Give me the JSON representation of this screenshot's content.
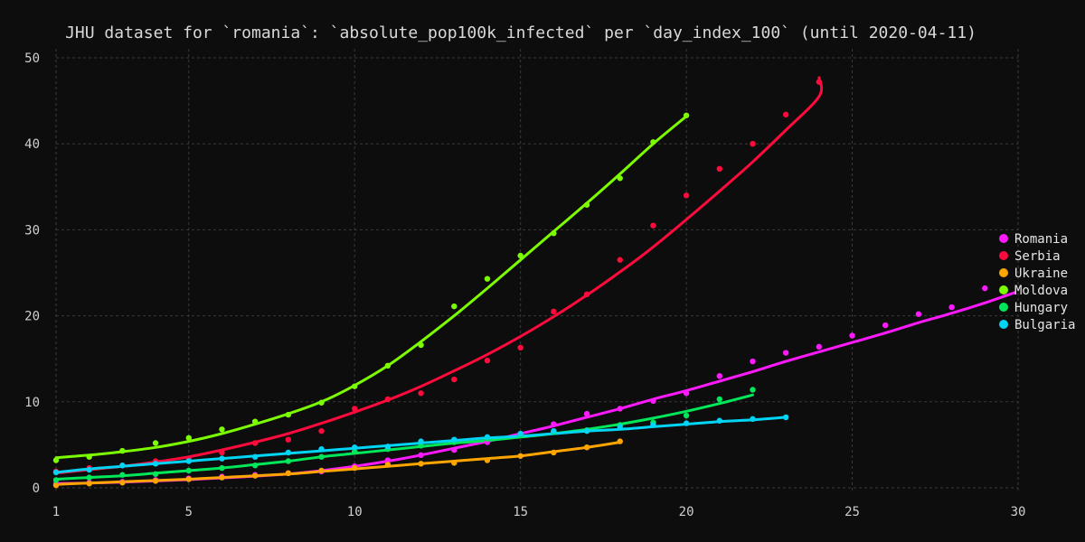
{
  "chart_data": {
    "type": "scatter",
    "title": "JHU dataset for `romania`: `absolute_pop100k_infected` per `day_index_100` (until 2020-04-11)",
    "xlabel": "",
    "ylabel": "",
    "xlim": [
      1,
      30
    ],
    "ylim": [
      0,
      50
    ],
    "xticks": [
      1,
      5,
      10,
      15,
      20,
      25,
      30
    ],
    "yticks": [
      0,
      10,
      20,
      30,
      40,
      50
    ],
    "grid": true,
    "legend_position": "right",
    "series": [
      {
        "name": "Romania",
        "color": "#ff19ff",
        "x": [
          1,
          2,
          3,
          4,
          5,
          6,
          7,
          8,
          9,
          10,
          11,
          12,
          13,
          14,
          15,
          16,
          17,
          18,
          19,
          20,
          21,
          22,
          23,
          24,
          25,
          26,
          27,
          28,
          29
        ],
        "y": [
          0.5,
          0.6,
          0.7,
          0.9,
          1.1,
          1.3,
          1.5,
          1.7,
          1.9,
          2.5,
          3.2,
          3.8,
          4.4,
          5.3,
          6.2,
          7.4,
          8.6,
          9.2,
          10.1,
          11.0,
          13.0,
          14.7,
          15.7,
          16.4,
          17.7,
          18.9,
          20.2,
          21.0,
          23.2
        ],
        "fit": [
          0.5,
          0.55,
          0.65,
          0.8,
          0.95,
          1.15,
          1.35,
          1.6,
          2.0,
          2.5,
          3.1,
          3.8,
          4.6,
          5.4,
          6.3,
          7.2,
          8.2,
          9.2,
          10.3,
          11.3,
          12.4,
          13.5,
          14.7,
          15.8,
          16.9,
          18.0,
          19.2,
          20.3,
          21.5,
          22.7
        ],
        "fit_x": [
          1,
          2,
          3,
          4,
          5,
          6,
          7,
          8,
          9,
          10,
          11,
          12,
          13,
          14,
          15,
          16,
          17,
          18,
          19,
          20,
          21,
          22,
          23,
          24,
          25,
          26,
          27,
          28,
          29,
          29.9
        ]
      },
      {
        "name": "Serbia",
        "color": "#ff0a3c",
        "x": [
          1,
          2,
          3,
          4,
          5,
          6,
          7,
          8,
          9,
          10,
          11,
          12,
          13,
          14,
          15,
          16,
          17,
          18,
          19,
          20,
          21,
          22,
          23,
          24
        ],
        "y": [
          1.9,
          2.3,
          2.6,
          3.1,
          3.4,
          4.1,
          5.2,
          5.6,
          6.6,
          9.2,
          10.3,
          11.0,
          12.6,
          14.8,
          16.3,
          20.5,
          22.5,
          26.5,
          30.5,
          34.0,
          37.1,
          40.0,
          43.4,
          47.2
        ],
        "fit": [
          1.7,
          2.1,
          2.5,
          3.0,
          3.6,
          4.4,
          5.3,
          6.3,
          7.5,
          8.8,
          10.2,
          11.8,
          13.6,
          15.5,
          17.6,
          19.9,
          22.4,
          25.1,
          28.0,
          31.2,
          34.5,
          37.9,
          41.6,
          45.5,
          47.7
        ],
        "fit_x": [
          1,
          2,
          3,
          4,
          5,
          6,
          7,
          8,
          9,
          10,
          11,
          12,
          13,
          14,
          15,
          16,
          17,
          18,
          19,
          20,
          21,
          22,
          23,
          24,
          24.0
        ]
      },
      {
        "name": "Ukraine",
        "color": "#ffa500",
        "x": [
          1,
          2,
          3,
          4,
          5,
          6,
          7,
          8,
          9,
          10,
          11,
          12,
          13,
          14,
          15,
          16,
          17,
          18
        ],
        "y": [
          0.3,
          0.5,
          0.6,
          0.8,
          1.0,
          1.2,
          1.4,
          1.7,
          2.0,
          2.3,
          2.7,
          2.8,
          2.9,
          3.2,
          3.7,
          4.1,
          4.7,
          5.4
        ],
        "fit": [
          0.4,
          0.55,
          0.7,
          0.85,
          1.0,
          1.2,
          1.4,
          1.6,
          1.9,
          2.2,
          2.5,
          2.8,
          3.1,
          3.4,
          3.7,
          4.2,
          4.7,
          5.3
        ],
        "fit_x": [
          1,
          2,
          3,
          4,
          5,
          6,
          7,
          8,
          9,
          10,
          11,
          12,
          13,
          14,
          15,
          16,
          17,
          18
        ]
      },
      {
        "name": "Moldova",
        "color": "#7cfc00",
        "x": [
          1,
          2,
          3,
          4,
          5,
          6,
          7,
          8,
          9,
          10,
          11,
          12,
          13,
          14,
          15,
          16,
          17,
          18,
          19,
          20
        ],
        "y": [
          3.2,
          3.6,
          4.3,
          5.2,
          5.8,
          6.8,
          7.7,
          8.5,
          9.9,
          11.8,
          14.2,
          16.6,
          21.1,
          24.3,
          27.0,
          29.6,
          32.9,
          36.0,
          40.2,
          43.3
        ],
        "fit": [
          3.5,
          3.8,
          4.2,
          4.7,
          5.4,
          6.3,
          7.4,
          8.6,
          10.0,
          11.9,
          14.2,
          17.0,
          20.0,
          23.2,
          26.5,
          29.8,
          33.1,
          36.5,
          40.0,
          43.2
        ],
        "fit_x": [
          1,
          2,
          3,
          4,
          5,
          6,
          7,
          8,
          9,
          10,
          11,
          12,
          13,
          14,
          15,
          16,
          17,
          18,
          19,
          20
        ]
      },
      {
        "name": "Hungary",
        "color": "#00e85a",
        "x": [
          1,
          2,
          3,
          4,
          5,
          6,
          7,
          8,
          9,
          10,
          11,
          12,
          13,
          14,
          15,
          16,
          17,
          18,
          19,
          20,
          21,
          22
        ],
        "y": [
          0.9,
          1.2,
          1.5,
          1.6,
          2.0,
          2.3,
          2.6,
          3.1,
          3.6,
          4.2,
          4.5,
          4.9,
          5.3,
          5.7,
          6.1,
          6.5,
          6.7,
          7.3,
          7.6,
          8.4,
          10.3,
          11.4
        ],
        "fit": [
          1.0,
          1.2,
          1.4,
          1.7,
          2.0,
          2.3,
          2.7,
          3.1,
          3.6,
          4.0,
          4.4,
          4.8,
          5.2,
          5.5,
          5.9,
          6.3,
          6.8,
          7.4,
          8.1,
          8.9,
          9.8,
          10.8
        ],
        "fit_x": [
          1,
          2,
          3,
          4,
          5,
          6,
          7,
          8,
          9,
          10,
          11,
          12,
          13,
          14,
          15,
          16,
          17,
          18,
          19,
          20,
          21,
          22
        ]
      },
      {
        "name": "Bulgaria",
        "color": "#00d5f5",
        "x": [
          1,
          2,
          3,
          4,
          5,
          6,
          7,
          8,
          9,
          10,
          11,
          12,
          13,
          14,
          15,
          16,
          17,
          18,
          19,
          20,
          21,
          22,
          23
        ],
        "y": [
          1.8,
          2.1,
          2.6,
          2.8,
          3.1,
          3.4,
          3.6,
          4.1,
          4.5,
          4.7,
          4.8,
          5.4,
          5.6,
          5.9,
          6.3,
          6.6,
          6.6,
          7.1,
          7.3,
          7.5,
          7.8,
          8.0,
          8.2
        ],
        "fit": [
          1.8,
          2.2,
          2.5,
          2.8,
          3.1,
          3.4,
          3.7,
          4.0,
          4.3,
          4.6,
          4.9,
          5.2,
          5.5,
          5.8,
          6.0,
          6.3,
          6.6,
          6.8,
          7.1,
          7.4,
          7.7,
          7.9,
          8.2
        ],
        "fit_x": [
          1,
          2,
          3,
          4,
          5,
          6,
          7,
          8,
          9,
          10,
          11,
          12,
          13,
          14,
          15,
          16,
          17,
          18,
          19,
          20,
          21,
          22,
          23
        ]
      }
    ]
  }
}
